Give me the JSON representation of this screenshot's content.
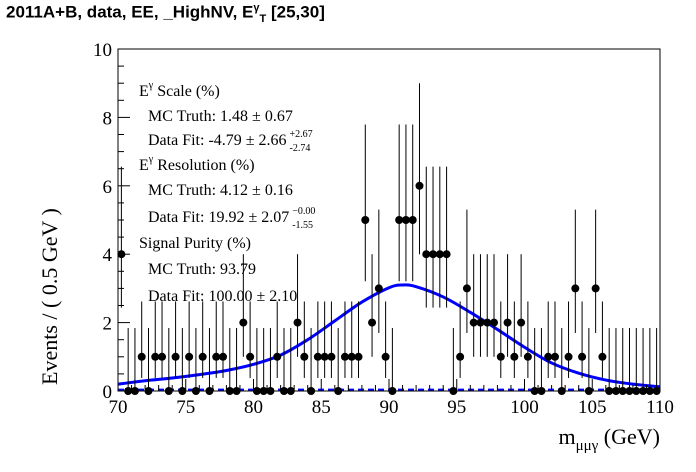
{
  "title": {
    "prefix": "2011A+B, data, EE, _HighNV, E",
    "sup": "γ",
    "sub": "T",
    "suffix": " [25,30]"
  },
  "chart_data": {
    "type": "scatter",
    "xlabel_main": "m",
    "xlabel_sub": "μμγ",
    "xlabel_unit": " (GeV)",
    "ylabel": "Events / ( 0.5 GeV )",
    "xlim": [
      70,
      110
    ],
    "ylim": [
      0,
      10
    ],
    "x_ticks": [
      70,
      75,
      80,
      85,
      90,
      95,
      100,
      105,
      110
    ],
    "y_ticks": [
      0,
      2,
      4,
      6,
      8,
      10
    ],
    "bin_width": 0.5,
    "data": {
      "x": [
        70.25,
        70.75,
        71.25,
        71.75,
        72.25,
        72.75,
        73.25,
        73.75,
        74.25,
        74.75,
        75.25,
        75.75,
        76.25,
        76.75,
        77.25,
        77.75,
        78.25,
        78.75,
        79.25,
        79.75,
        80.25,
        80.75,
        81.25,
        81.75,
        82.25,
        82.75,
        83.25,
        83.75,
        84.25,
        84.75,
        85.25,
        85.75,
        86.25,
        86.75,
        87.25,
        87.75,
        88.25,
        88.75,
        89.25,
        89.75,
        90.25,
        90.75,
        91.25,
        91.75,
        92.25,
        92.75,
        93.25,
        93.75,
        94.25,
        94.75,
        95.25,
        95.75,
        96.25,
        96.75,
        97.25,
        97.75,
        98.25,
        98.75,
        99.25,
        99.75,
        100.25,
        100.75,
        101.25,
        101.75,
        102.25,
        102.75,
        103.25,
        103.75,
        104.25,
        104.75,
        105.25,
        105.75,
        106.25,
        106.75,
        107.25,
        107.75,
        108.25,
        108.75,
        109.25,
        109.75
      ],
      "y": [
        4,
        0,
        0,
        1,
        0,
        1,
        1,
        0,
        1,
        0,
        1,
        0,
        1,
        0,
        1,
        1,
        0,
        0,
        2,
        1,
        0,
        0,
        0,
        1,
        0,
        0,
        2,
        1,
        0,
        1,
        1,
        1,
        0,
        1,
        1,
        1,
        5,
        2,
        3,
        1,
        0,
        5,
        5,
        5,
        6,
        4,
        4,
        4,
        4,
        0,
        1,
        3,
        2,
        2,
        2,
        2,
        1,
        2,
        1,
        2,
        1,
        0,
        0,
        1,
        1,
        0,
        1,
        3,
        1,
        0,
        3,
        1,
        0,
        0,
        0,
        0,
        0,
        0,
        0,
        0
      ],
      "marker": "filled-circle",
      "error_bars": "poisson"
    },
    "fit": {
      "type": "curve",
      "color": "#0000ff",
      "x": [
        70,
        72,
        74,
        76,
        78,
        80,
        82,
        84,
        86,
        88,
        90,
        91,
        92,
        94,
        96,
        98,
        100,
        102,
        104,
        106,
        108,
        110
      ],
      "y": [
        0.2,
        0.3,
        0.38,
        0.48,
        0.6,
        0.78,
        1.05,
        1.5,
        2.05,
        2.6,
        3.02,
        3.1,
        3.05,
        2.75,
        2.3,
        1.8,
        1.28,
        0.82,
        0.52,
        0.32,
        0.2,
        0.12
      ]
    },
    "background": {
      "style": "dashed",
      "color": "#0000ff",
      "x": [
        70,
        110
      ],
      "y": [
        0.04,
        0.04
      ]
    },
    "annotations": [
      {
        "main": "E",
        "sup": "γ",
        "rest": " Scale (%)"
      },
      {
        "text": "MC Truth: 1.48 ± 0.67"
      },
      {
        "text": "Data Fit: -4.79 ± 2.66",
        "sup": "+2.67",
        "sub": "-2.74"
      },
      {
        "main": "E",
        "sup": "γ",
        "rest": " Resolution (%)"
      },
      {
        "text": "MC Truth: 4.12 ± 0.16"
      },
      {
        "text": "Data Fit: 19.92 ± 2.07",
        "sup": "−0.00",
        "sub": "-1.55"
      },
      {
        "text": "Signal Purity (%)"
      },
      {
        "text": "MC Truth: 93.79"
      },
      {
        "text": "Data Fit: 100.00 ± 2.10"
      }
    ]
  }
}
